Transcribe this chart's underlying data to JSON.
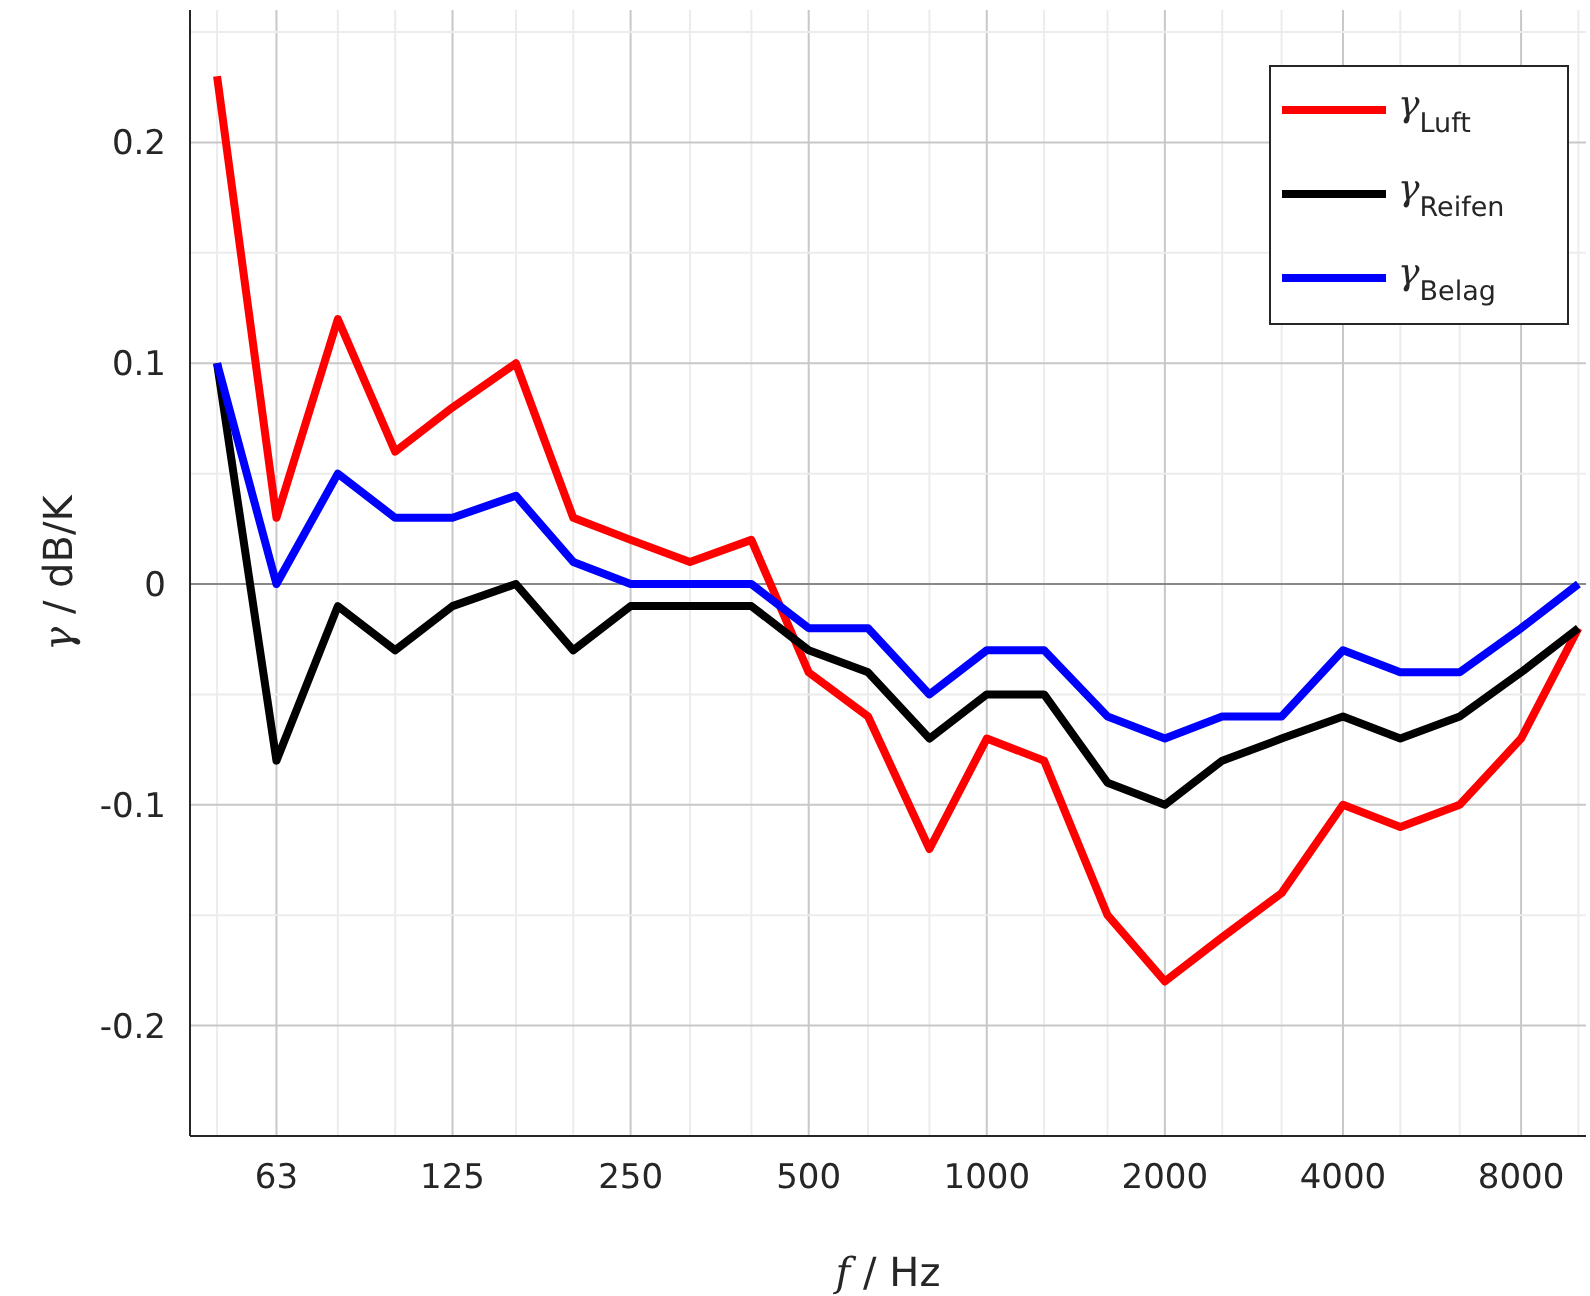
{
  "chart_data": {
    "type": "line",
    "xlabel": "f / Hz",
    "ylabel": "γ / dB/K",
    "log": "x",
    "x": [
      50,
      63,
      80,
      100,
      125,
      160,
      200,
      250,
      315,
      400,
      500,
      630,
      800,
      1000,
      1250,
      1600,
      2000,
      2500,
      3150,
      4000,
      5000,
      6300,
      8000,
      10000
    ],
    "xlim": [
      45,
      10300
    ],
    "ylim": [
      -0.25,
      0.26
    ],
    "xticks": [
      {
        "value": 50,
        "label": null
      },
      63,
      {
        "value": 80,
        "label": null
      },
      {
        "value": 100,
        "label": null
      },
      125,
      {
        "value": 160,
        "label": null
      },
      {
        "value": 200,
        "label": null
      },
      250,
      {
        "value": 315,
        "label": null
      },
      {
        "value": 400,
        "label": null
      },
      500,
      {
        "value": 630,
        "label": null
      },
      {
        "value": 800,
        "label": null
      },
      1000,
      {
        "value": 1250,
        "label": null
      },
      {
        "value": 1600,
        "label": null
      },
      2000,
      {
        "value": 2500,
        "label": null
      },
      {
        "value": 3150,
        "label": null
      },
      4000,
      {
        "value": 5000,
        "label": null
      },
      {
        "value": 6300,
        "label": null
      },
      8000,
      {
        "value": 10000,
        "label": null
      }
    ],
    "yticks": [
      {
        "value": -0.25,
        "label": null
      },
      -0.2,
      {
        "value": -0.15,
        "label": null
      },
      -0.1,
      {
        "value": -0.05,
        "label": null
      },
      0,
      {
        "value": 0.05,
        "label": null
      },
      0.1,
      {
        "value": 0.15,
        "label": null
      },
      0.2,
      {
        "value": 0.25,
        "label": null
      }
    ],
    "grid": true,
    "legend": "top right",
    "line_style": "solid",
    "marker": "none",
    "ref_lines": [
      {
        "axis": "y",
        "value": 0,
        "label": null,
        "color": "#888888"
      }
    ],
    "series": [
      {
        "name": "γ$_{Luft}$",
        "color": "#ff0000",
        "values": [
          0.23,
          0.03,
          0.12,
          0.06,
          0.08,
          0.1,
          0.03,
          0.02,
          0.01,
          0.02,
          -0.04,
          -0.06,
          -0.12,
          -0.07,
          -0.08,
          -0.15,
          -0.18,
          -0.16,
          -0.14,
          -0.1,
          -0.11,
          -0.1,
          -0.07,
          -0.02
        ]
      },
      {
        "name": "γ$_{Reifen}$",
        "color": "#000000",
        "values": [
          0.1,
          -0.08,
          -0.01,
          -0.03,
          -0.01,
          0.0,
          -0.03,
          -0.01,
          -0.01,
          -0.01,
          -0.03,
          -0.04,
          -0.07,
          -0.05,
          -0.05,
          -0.09,
          -0.1,
          -0.08,
          -0.07,
          -0.06,
          -0.07,
          -0.06,
          -0.04,
          -0.02
        ]
      },
      {
        "name": "γ$_{Belag}$",
        "color": "#0000ff",
        "values": [
          0.1,
          0.0,
          0.05,
          0.03,
          0.03,
          0.04,
          0.01,
          0.0,
          0.0,
          0.0,
          -0.02,
          -0.02,
          -0.05,
          -0.03,
          -0.03,
          -0.06,
          -0.07,
          -0.06,
          -0.06,
          -0.03,
          -0.04,
          -0.04,
          -0.02,
          0.0
        ]
      }
    ]
  }
}
